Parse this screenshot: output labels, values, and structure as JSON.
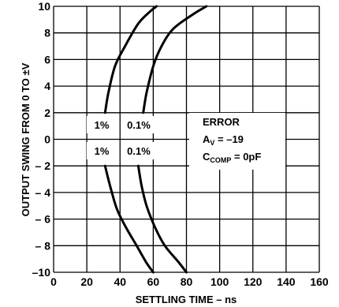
{
  "chart_data": {
    "type": "line",
    "xlabel": "SETTLING TIME – ns",
    "ylabel": "OUTPUT SWING FROM 0 TO ±V",
    "xlim": [
      0,
      160
    ],
    "ylim": [
      -10,
      10
    ],
    "x_ticks": [
      "0",
      "20",
      "40",
      "60",
      "80",
      "100",
      "120",
      "140",
      "160"
    ],
    "y_ticks": [
      "10",
      "8",
      "6",
      "4",
      "2",
      "0",
      "– 2",
      "– 4",
      "– 6",
      "– 8",
      "–10"
    ],
    "grid": true,
    "series": [
      {
        "name": "1%",
        "points": [
          [
            31,
            2
          ],
          [
            33,
            3.5
          ],
          [
            37,
            5.5
          ],
          [
            43,
            7
          ],
          [
            51,
            8.7
          ],
          [
            58,
            9.6
          ],
          [
            62,
            10
          ]
        ]
      },
      {
        "name": "1%",
        "points": [
          [
            31,
            -2
          ],
          [
            34,
            -3.5
          ],
          [
            38,
            -5.2
          ],
          [
            43,
            -6.5
          ],
          [
            50,
            -8
          ],
          [
            56,
            -9.3
          ],
          [
            60,
            -10
          ]
        ]
      },
      {
        "name": "0.1%",
        "points": [
          [
            54,
            2
          ],
          [
            56,
            3.5
          ],
          [
            60,
            5.5
          ],
          [
            65,
            7
          ],
          [
            72,
            8.3
          ],
          [
            84,
            9.4
          ],
          [
            92,
            10
          ]
        ]
      },
      {
        "name": "0.1%",
        "points": [
          [
            51,
            -2
          ],
          [
            53,
            -3.5
          ],
          [
            56,
            -5
          ],
          [
            61,
            -6.6
          ],
          [
            67,
            -8
          ],
          [
            75,
            -9.2
          ],
          [
            80,
            -10
          ]
        ]
      }
    ],
    "annotations": {
      "label_1pct_upper": "1%",
      "label_01pct_upper": "0.1%",
      "label_1pct_lower": "1%",
      "label_01pct_lower": "0.1%",
      "error_title": "ERROR",
      "av_main": "A",
      "av_sub": "V",
      "av_value": " = –19",
      "ccomp_main": "C",
      "ccomp_sub": "COMP",
      "ccomp_value": " = 0pF"
    }
  }
}
